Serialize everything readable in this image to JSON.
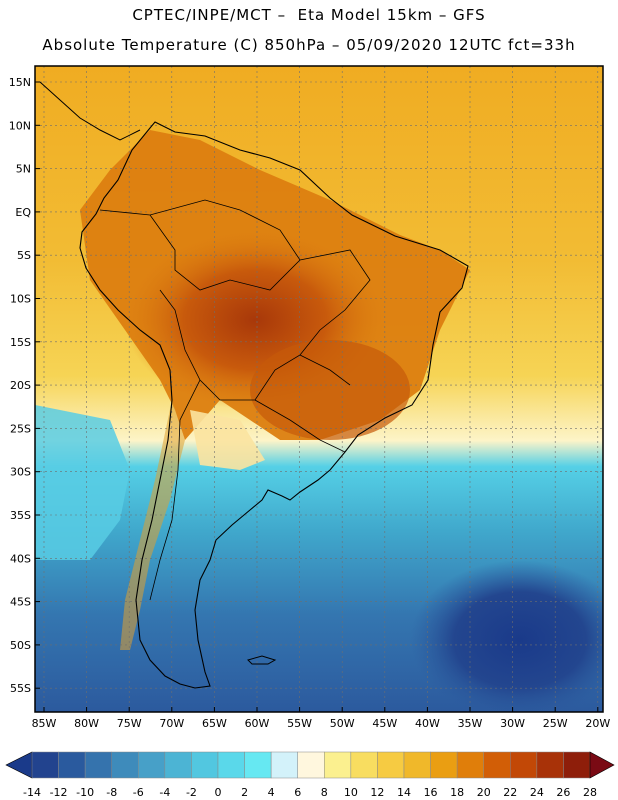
{
  "header": {
    "line1": "CPTEC/INPE/MCT –  Eta Model 15km – GFS",
    "line2": "Absolute Temperature (C) 850hPa – 05/09/2020 12UTC fct=33h"
  },
  "axes": {
    "lat_labels": [
      "15N",
      "10N",
      "5N",
      "EQ",
      "5S",
      "10S",
      "15S",
      "20S",
      "25S",
      "30S",
      "35S",
      "40S",
      "45S",
      "50S",
      "55S"
    ],
    "lon_labels": [
      "85W",
      "80W",
      "75W",
      "70W",
      "65W",
      "60W",
      "55W",
      "50W",
      "45W",
      "40W",
      "35W",
      "30W",
      "25W",
      "20W"
    ]
  },
  "colorbar": {
    "labels": [
      "-14",
      "-12",
      "-10",
      "-8",
      "-6",
      "-4",
      "-2",
      "0",
      "2",
      "4",
      "6",
      "8",
      "10",
      "12",
      "14",
      "16",
      "18",
      "20",
      "22",
      "24",
      "26",
      "28"
    ],
    "colors": [
      "#22438e",
      "#2a5a9e",
      "#3573ad",
      "#3e8bbb",
      "#47a0c8",
      "#4cb4d4",
      "#52c7e0",
      "#5ad8ea",
      "#66e8f2",
      "#d3f2fa",
      "#fff7de",
      "#fbf08f",
      "#f8dd60",
      "#f6cb42",
      "#f0b82a",
      "#ea9e12",
      "#e07e0a",
      "#d25e06",
      "#c24806",
      "#a83208",
      "#8e1e0a"
    ],
    "low_color": "#1a3a8a",
    "high_color": "#7a0a14"
  }
}
